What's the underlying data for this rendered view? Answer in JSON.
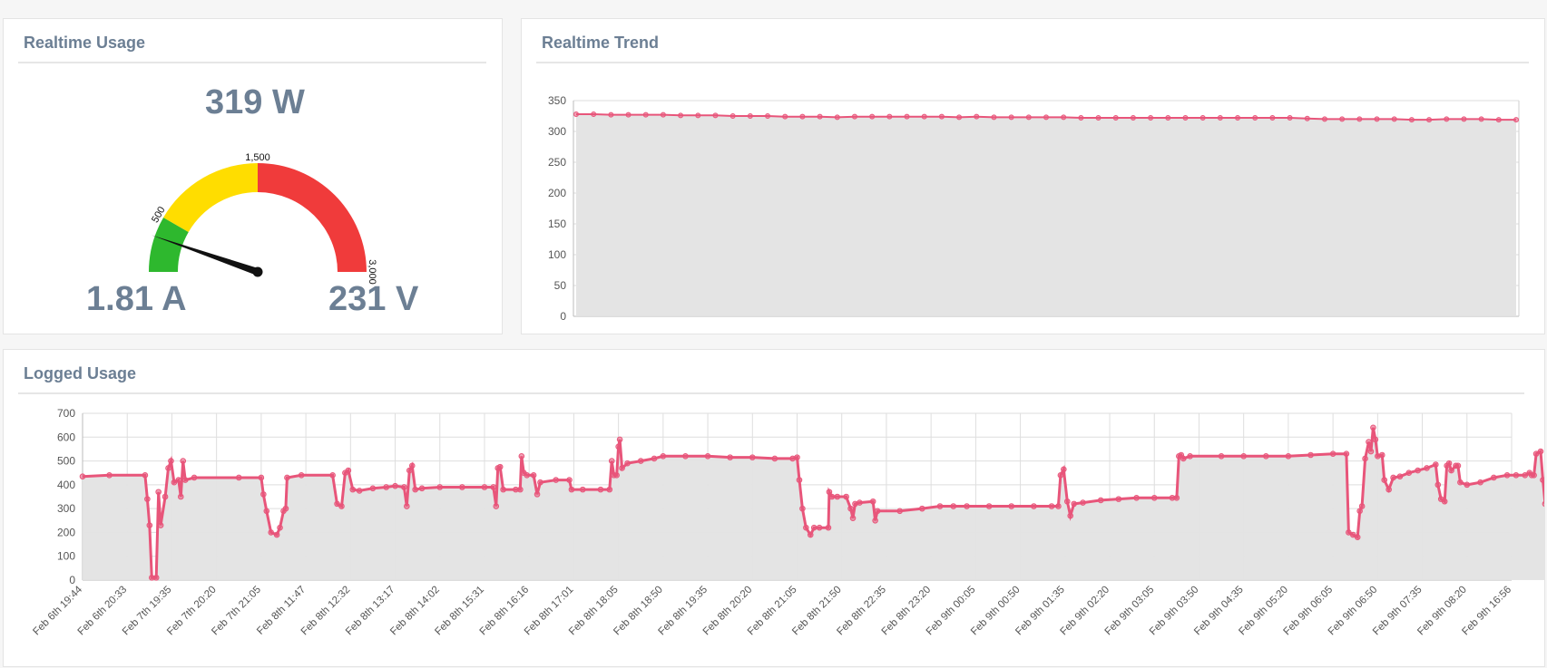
{
  "realtime_usage": {
    "title": "Realtime Usage",
    "power_label": "319 W",
    "current_label": "1.81 A",
    "voltage_label": "231 V",
    "gauge": {
      "min": 0,
      "max": 3000,
      "value": 319,
      "tick_labels": [
        {
          "value": 500,
          "label": "500"
        },
        {
          "value": 1500,
          "label": "1,500"
        },
        {
          "value": 3000,
          "label": "3,000"
        }
      ],
      "bands": [
        {
          "from": 0,
          "to": 500,
          "color": "#2eb82e"
        },
        {
          "from": 500,
          "to": 1500,
          "color": "#ffdd00"
        },
        {
          "from": 1500,
          "to": 3000,
          "color": "#f03b3b"
        }
      ]
    }
  },
  "realtime_trend": {
    "title": "Realtime Trend"
  },
  "logged_usage": {
    "title": "Logged Usage"
  },
  "chart_data": [
    {
      "type": "area",
      "title": "Realtime Trend",
      "xlabel": "",
      "ylabel": "",
      "ylim": [
        0,
        350
      ],
      "y_ticks": [
        0,
        50,
        100,
        150,
        200,
        250,
        300,
        350
      ],
      "grid": true,
      "line_color": "#e8557a",
      "fill_color": "#e3e3e3",
      "series": [
        {
          "values": [
            328,
            328,
            327,
            327,
            327,
            327,
            326,
            326,
            326,
            325,
            325,
            325,
            324,
            324,
            324,
            323,
            324,
            324,
            324,
            324,
            324,
            324,
            323,
            324,
            323,
            323,
            323,
            323,
            323,
            322,
            322,
            322,
            322,
            322,
            322,
            322,
            322,
            322,
            322,
            322,
            322,
            322,
            321,
            320,
            320,
            320,
            320,
            320,
            319,
            319,
            320,
            320,
            320,
            319,
            319
          ]
        }
      ]
    },
    {
      "type": "area",
      "title": "Logged Usage",
      "xlabel": "",
      "ylabel": "",
      "ylim": [
        0,
        700
      ],
      "y_ticks": [
        0,
        100,
        200,
        300,
        400,
        500,
        600,
        700
      ],
      "grid": true,
      "line_color": "#e8557a",
      "fill_color": "#e3e3e3",
      "categories": [
        "Feb 6th 19:44",
        "Feb 6th 20:33",
        "Feb 7th 19:35",
        "Feb 7th 20:20",
        "Feb 7th 21:05",
        "Feb 8th 11:47",
        "Feb 8th 12:32",
        "Feb 8th 13:17",
        "Feb 8th 14:02",
        "Feb 8th 15:31",
        "Feb 8th 16:16",
        "Feb 8th 17:01",
        "Feb 8th 18:05",
        "Feb 8th 18:50",
        "Feb 8th 19:35",
        "Feb 8th 20:20",
        "Feb 8th 21:05",
        "Feb 8th 21:50",
        "Feb 8th 22:35",
        "Feb 8th 23:20",
        "Feb 9th 00:05",
        "Feb 9th 00:50",
        "Feb 9th 01:35",
        "Feb 9th 02:20",
        "Feb 9th 03:05",
        "Feb 9th 03:50",
        "Feb 9th 04:35",
        "Feb 9th 05:20",
        "Feb 9th 06:05",
        "Feb 9th 06:50",
        "Feb 9th 07:35",
        "Feb 9th 08:20",
        "Feb 9th 16:56"
      ],
      "series": [
        {
          "points": [
            [
              0,
              435
            ],
            [
              0.6,
              440
            ],
            [
              1.4,
              440
            ],
            [
              1.45,
              340
            ],
            [
              1.5,
              230
            ],
            [
              1.55,
              10
            ],
            [
              1.65,
              10
            ],
            [
              1.7,
              370
            ],
            [
              1.75,
              230
            ],
            [
              1.85,
              350
            ],
            [
              1.92,
              470
            ],
            [
              1.98,
              500
            ],
            [
              2.05,
              410
            ],
            [
              2.15,
              420
            ],
            [
              2.2,
              350
            ],
            [
              2.25,
              500
            ],
            [
              2.3,
              420
            ],
            [
              2.5,
              430
            ],
            [
              3.5,
              430
            ],
            [
              4.0,
              430
            ],
            [
              4.05,
              360
            ],
            [
              4.12,
              290
            ],
            [
              4.22,
              200
            ],
            [
              4.35,
              190
            ],
            [
              4.42,
              220
            ],
            [
              4.5,
              290
            ],
            [
              4.55,
              300
            ],
            [
              4.58,
              430
            ],
            [
              4.9,
              440
            ],
            [
              5.6,
              440
            ],
            [
              5.7,
              320
            ],
            [
              5.8,
              310
            ],
            [
              5.88,
              450
            ],
            [
              5.95,
              460
            ],
            [
              6.05,
              380
            ],
            [
              6.2,
              375
            ],
            [
              6.5,
              385
            ],
            [
              6.8,
              390
            ],
            [
              7.0,
              395
            ],
            [
              7.2,
              390
            ],
            [
              7.26,
              310
            ],
            [
              7.32,
              460
            ],
            [
              7.38,
              480
            ],
            [
              7.45,
              380
            ],
            [
              7.6,
              385
            ],
            [
              8.0,
              390
            ],
            [
              8.5,
              390
            ],
            [
              9.0,
              390
            ],
            [
              9.2,
              390
            ],
            [
              9.26,
              310
            ],
            [
              9.3,
              470
            ],
            [
              9.35,
              475
            ],
            [
              9.42,
              380
            ],
            [
              9.7,
              380
            ],
            [
              9.8,
              380
            ],
            [
              9.83,
              520
            ],
            [
              9.88,
              450
            ],
            [
              9.95,
              440
            ],
            [
              10.1,
              440
            ],
            [
              10.18,
              360
            ],
            [
              10.25,
              410
            ],
            [
              10.6,
              420
            ],
            [
              10.9,
              420
            ],
            [
              10.95,
              380
            ],
            [
              11.2,
              380
            ],
            [
              11.6,
              380
            ],
            [
              11.8,
              380
            ],
            [
              11.85,
              500
            ],
            [
              11.9,
              440
            ],
            [
              11.96,
              440
            ],
            [
              12.0,
              560
            ],
            [
              12.03,
              590
            ],
            [
              12.08,
              470
            ],
            [
              12.2,
              490
            ],
            [
              12.5,
              500
            ],
            [
              12.8,
              510
            ],
            [
              13.0,
              520
            ],
            [
              13.5,
              520
            ],
            [
              14.0,
              520
            ],
            [
              14.5,
              515
            ],
            [
              15.0,
              515
            ],
            [
              15.5,
              510
            ],
            [
              15.9,
              510
            ],
            [
              16.0,
              515
            ],
            [
              16.05,
              420
            ],
            [
              16.12,
              300
            ],
            [
              16.2,
              220
            ],
            [
              16.3,
              190
            ],
            [
              16.38,
              220
            ],
            [
              16.5,
              220
            ],
            [
              16.7,
              220
            ],
            [
              16.72,
              370
            ],
            [
              16.78,
              350
            ],
            [
              16.9,
              350
            ],
            [
              17.1,
              350
            ],
            [
              17.2,
              300
            ],
            [
              17.25,
              260
            ],
            [
              17.3,
              320
            ],
            [
              17.4,
              325
            ],
            [
              17.7,
              330
            ],
            [
              17.75,
              250
            ],
            [
              17.8,
              290
            ],
            [
              18.3,
              290
            ],
            [
              18.8,
              300
            ],
            [
              19.2,
              310
            ],
            [
              19.5,
              310
            ],
            [
              19.8,
              310
            ],
            [
              20.3,
              310
            ],
            [
              20.8,
              310
            ],
            [
              21.3,
              310
            ],
            [
              21.7,
              310
            ],
            [
              21.85,
              310
            ],
            [
              21.9,
              440
            ],
            [
              21.97,
              465
            ],
            [
              22.05,
              330
            ],
            [
              22.12,
              270
            ],
            [
              22.2,
              320
            ],
            [
              22.4,
              325
            ],
            [
              22.8,
              335
            ],
            [
              23.2,
              340
            ],
            [
              23.6,
              345
            ],
            [
              24.0,
              345
            ],
            [
              24.4,
              345
            ],
            [
              24.5,
              345
            ],
            [
              24.55,
              520
            ],
            [
              24.6,
              525
            ],
            [
              24.65,
              510
            ],
            [
              24.8,
              520
            ],
            [
              25.5,
              520
            ],
            [
              26.0,
              520
            ],
            [
              26.5,
              520
            ],
            [
              27.0,
              520
            ],
            [
              27.5,
              525
            ],
            [
              28.0,
              530
            ],
            [
              28.3,
              530
            ],
            [
              28.35,
              200
            ],
            [
              28.45,
              190
            ],
            [
              28.55,
              180
            ],
            [
              28.6,
              290
            ],
            [
              28.65,
              310
            ],
            [
              28.72,
              510
            ],
            [
              28.8,
              580
            ],
            [
              28.85,
              540
            ],
            [
              28.9,
              640
            ],
            [
              28.95,
              590
            ],
            [
              29.0,
              520
            ],
            [
              29.1,
              525
            ],
            [
              29.15,
              420
            ],
            [
              29.25,
              380
            ],
            [
              29.35,
              430
            ],
            [
              29.5,
              435
            ],
            [
              29.7,
              450
            ],
            [
              29.9,
              460
            ],
            [
              30.1,
              470
            ],
            [
              30.3,
              485
            ],
            [
              30.35,
              400
            ],
            [
              30.42,
              340
            ],
            [
              30.5,
              330
            ],
            [
              30.55,
              480
            ],
            [
              30.6,
              490
            ],
            [
              30.65,
              460
            ],
            [
              30.75,
              480
            ],
            [
              30.8,
              480
            ],
            [
              30.85,
              410
            ],
            [
              31.0,
              400
            ],
            [
              31.3,
              410
            ],
            [
              31.6,
              430
            ],
            [
              31.9,
              440
            ],
            [
              32.1,
              440
            ],
            [
              32.3,
              440
            ],
            [
              32.4,
              450
            ],
            [
              32.45,
              440
            ],
            [
              32.5,
              440
            ],
            [
              32.55,
              530
            ],
            [
              32.65,
              540
            ],
            [
              32.7,
              420
            ],
            [
              32.75,
              320
            ]
          ]
        }
      ]
    }
  ]
}
